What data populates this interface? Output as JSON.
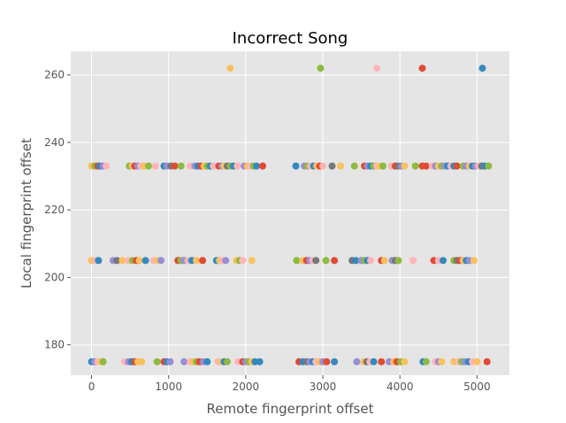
{
  "chart_data": {
    "type": "scatter",
    "title": "Incorrect Song",
    "xlabel": "Remote fingerprint offset",
    "ylabel": "Local fingerprint offset",
    "xlim": [
      -270,
      5420
    ],
    "ylim": [
      171,
      267
    ],
    "xticks": [
      0,
      1000,
      2000,
      3000,
      4000,
      5000
    ],
    "yticks": [
      180,
      200,
      220,
      240,
      260
    ],
    "grid": true,
    "legend": "none",
    "colors": [
      "#E24A33",
      "#348ABD",
      "#988ED5",
      "#777777",
      "#FBC15E",
      "#8EBA42",
      "#FFB5B8"
    ],
    "points": [
      {
        "x": 1800,
        "y": 262,
        "c": 4
      },
      {
        "x": 2970,
        "y": 262,
        "c": 5
      },
      {
        "x": 3700,
        "y": 262,
        "c": 6
      },
      {
        "x": 4290,
        "y": 262,
        "c": 0
      },
      {
        "x": 5070,
        "y": 262,
        "c": 1
      },
      {
        "x": 0,
        "y": 233,
        "c": 4
      },
      {
        "x": 40,
        "y": 233,
        "c": 5
      },
      {
        "x": 80,
        "y": 233,
        "c": 0
      },
      {
        "x": 110,
        "y": 233,
        "c": 1
      },
      {
        "x": 150,
        "y": 233,
        "c": 2
      },
      {
        "x": 190,
        "y": 233,
        "c": 6
      },
      {
        "x": 490,
        "y": 233,
        "c": 5
      },
      {
        "x": 530,
        "y": 233,
        "c": 4
      },
      {
        "x": 560,
        "y": 233,
        "c": 0
      },
      {
        "x": 600,
        "y": 233,
        "c": 2
      },
      {
        "x": 640,
        "y": 233,
        "c": 6
      },
      {
        "x": 680,
        "y": 233,
        "c": 4
      },
      {
        "x": 740,
        "y": 233,
        "c": 5
      },
      {
        "x": 830,
        "y": 233,
        "c": 6
      },
      {
        "x": 940,
        "y": 233,
        "c": 1
      },
      {
        "x": 980,
        "y": 233,
        "c": 2
      },
      {
        "x": 1030,
        "y": 233,
        "c": 3
      },
      {
        "x": 1080,
        "y": 233,
        "c": 0
      },
      {
        "x": 1160,
        "y": 233,
        "c": 5
      },
      {
        "x": 1280,
        "y": 233,
        "c": 6
      },
      {
        "x": 1340,
        "y": 233,
        "c": 2
      },
      {
        "x": 1380,
        "y": 233,
        "c": 1
      },
      {
        "x": 1420,
        "y": 233,
        "c": 0
      },
      {
        "x": 1460,
        "y": 233,
        "c": 4
      },
      {
        "x": 1500,
        "y": 233,
        "c": 5
      },
      {
        "x": 1540,
        "y": 233,
        "c": 1
      },
      {
        "x": 1580,
        "y": 233,
        "c": 6
      },
      {
        "x": 1650,
        "y": 233,
        "c": 0
      },
      {
        "x": 1690,
        "y": 233,
        "c": 2
      },
      {
        "x": 1720,
        "y": 233,
        "c": 4
      },
      {
        "x": 1760,
        "y": 233,
        "c": 3
      },
      {
        "x": 1800,
        "y": 233,
        "c": 5
      },
      {
        "x": 1840,
        "y": 233,
        "c": 1
      },
      {
        "x": 1890,
        "y": 233,
        "c": 6
      },
      {
        "x": 1980,
        "y": 233,
        "c": 2
      },
      {
        "x": 2020,
        "y": 233,
        "c": 4
      },
      {
        "x": 2060,
        "y": 233,
        "c": 6
      },
      {
        "x": 2100,
        "y": 233,
        "c": 5
      },
      {
        "x": 2140,
        "y": 233,
        "c": 1
      },
      {
        "x": 2220,
        "y": 233,
        "c": 0
      },
      {
        "x": 2650,
        "y": 233,
        "c": 1
      },
      {
        "x": 2760,
        "y": 233,
        "c": 2
      },
      {
        "x": 2800,
        "y": 233,
        "c": 5
      },
      {
        "x": 2840,
        "y": 233,
        "c": 6
      },
      {
        "x": 2880,
        "y": 233,
        "c": 1
      },
      {
        "x": 2920,
        "y": 233,
        "c": 4
      },
      {
        "x": 2960,
        "y": 233,
        "c": 0
      },
      {
        "x": 3000,
        "y": 233,
        "c": 6
      },
      {
        "x": 3120,
        "y": 233,
        "c": 3
      },
      {
        "x": 3230,
        "y": 233,
        "c": 4
      },
      {
        "x": 3410,
        "y": 233,
        "c": 5
      },
      {
        "x": 3540,
        "y": 233,
        "c": 0
      },
      {
        "x": 3580,
        "y": 233,
        "c": 2
      },
      {
        "x": 3620,
        "y": 233,
        "c": 1
      },
      {
        "x": 3660,
        "y": 233,
        "c": 5
      },
      {
        "x": 3700,
        "y": 233,
        "c": 6
      },
      {
        "x": 3740,
        "y": 233,
        "c": 4
      },
      {
        "x": 3780,
        "y": 233,
        "c": 5
      },
      {
        "x": 3890,
        "y": 233,
        "c": 6
      },
      {
        "x": 3940,
        "y": 233,
        "c": 0
      },
      {
        "x": 3980,
        "y": 233,
        "c": 3
      },
      {
        "x": 4020,
        "y": 233,
        "c": 2
      },
      {
        "x": 4060,
        "y": 233,
        "c": 4
      },
      {
        "x": 4200,
        "y": 233,
        "c": 5
      },
      {
        "x": 4290,
        "y": 233,
        "c": 0
      },
      {
        "x": 4340,
        "y": 233,
        "c": 0
      },
      {
        "x": 4420,
        "y": 233,
        "c": 6
      },
      {
        "x": 4460,
        "y": 233,
        "c": 2
      },
      {
        "x": 4500,
        "y": 233,
        "c": 4
      },
      {
        "x": 4540,
        "y": 233,
        "c": 5
      },
      {
        "x": 4580,
        "y": 233,
        "c": 2
      },
      {
        "x": 4620,
        "y": 233,
        "c": 1
      },
      {
        "x": 4660,
        "y": 233,
        "c": 6
      },
      {
        "x": 4700,
        "y": 233,
        "c": 1
      },
      {
        "x": 4740,
        "y": 233,
        "c": 0
      },
      {
        "x": 4820,
        "y": 233,
        "c": 5
      },
      {
        "x": 4860,
        "y": 233,
        "c": 2
      },
      {
        "x": 4900,
        "y": 233,
        "c": 4
      },
      {
        "x": 4940,
        "y": 233,
        "c": 1
      },
      {
        "x": 4980,
        "y": 233,
        "c": 2
      },
      {
        "x": 5020,
        "y": 233,
        "c": 6
      },
      {
        "x": 5060,
        "y": 233,
        "c": 3
      },
      {
        "x": 5100,
        "y": 233,
        "c": 1
      },
      {
        "x": 5150,
        "y": 233,
        "c": 5
      },
      {
        "x": 0,
        "y": 205,
        "c": 4
      },
      {
        "x": 50,
        "y": 205,
        "c": 6
      },
      {
        "x": 90,
        "y": 205,
        "c": 1
      },
      {
        "x": 280,
        "y": 205,
        "c": 2
      },
      {
        "x": 330,
        "y": 205,
        "c": 3
      },
      {
        "x": 400,
        "y": 205,
        "c": 4
      },
      {
        "x": 480,
        "y": 205,
        "c": 6
      },
      {
        "x": 530,
        "y": 205,
        "c": 5
      },
      {
        "x": 580,
        "y": 205,
        "c": 0
      },
      {
        "x": 620,
        "y": 205,
        "c": 4
      },
      {
        "x": 700,
        "y": 205,
        "c": 1
      },
      {
        "x": 800,
        "y": 205,
        "c": 6
      },
      {
        "x": 850,
        "y": 205,
        "c": 4
      },
      {
        "x": 900,
        "y": 205,
        "c": 2
      },
      {
        "x": 1120,
        "y": 205,
        "c": 0
      },
      {
        "x": 1160,
        "y": 205,
        "c": 5
      },
      {
        "x": 1200,
        "y": 205,
        "c": 2
      },
      {
        "x": 1250,
        "y": 205,
        "c": 6
      },
      {
        "x": 1300,
        "y": 205,
        "c": 1
      },
      {
        "x": 1360,
        "y": 205,
        "c": 4
      },
      {
        "x": 1440,
        "y": 205,
        "c": 0
      },
      {
        "x": 1620,
        "y": 205,
        "c": 1
      },
      {
        "x": 1660,
        "y": 205,
        "c": 4
      },
      {
        "x": 1700,
        "y": 205,
        "c": 6
      },
      {
        "x": 1740,
        "y": 205,
        "c": 2
      },
      {
        "x": 1880,
        "y": 205,
        "c": 4
      },
      {
        "x": 1920,
        "y": 205,
        "c": 5
      },
      {
        "x": 1960,
        "y": 205,
        "c": 6
      },
      {
        "x": 2080,
        "y": 205,
        "c": 4
      },
      {
        "x": 2660,
        "y": 205,
        "c": 5
      },
      {
        "x": 2740,
        "y": 205,
        "c": 4
      },
      {
        "x": 2790,
        "y": 205,
        "c": 0
      },
      {
        "x": 2830,
        "y": 205,
        "c": 2
      },
      {
        "x": 2870,
        "y": 205,
        "c": 6
      },
      {
        "x": 2910,
        "y": 205,
        "c": 3
      },
      {
        "x": 3040,
        "y": 205,
        "c": 5
      },
      {
        "x": 3150,
        "y": 205,
        "c": 0
      },
      {
        "x": 3380,
        "y": 205,
        "c": 3
      },
      {
        "x": 3430,
        "y": 205,
        "c": 1
      },
      {
        "x": 3500,
        "y": 205,
        "c": 2
      },
      {
        "x": 3540,
        "y": 205,
        "c": 5
      },
      {
        "x": 3580,
        "y": 205,
        "c": 1
      },
      {
        "x": 3620,
        "y": 205,
        "c": 6
      },
      {
        "x": 3760,
        "y": 205,
        "c": 0
      },
      {
        "x": 3800,
        "y": 205,
        "c": 4
      },
      {
        "x": 3900,
        "y": 205,
        "c": 2
      },
      {
        "x": 3940,
        "y": 205,
        "c": 3
      },
      {
        "x": 3980,
        "y": 205,
        "c": 5
      },
      {
        "x": 4170,
        "y": 205,
        "c": 6
      },
      {
        "x": 4440,
        "y": 205,
        "c": 0
      },
      {
        "x": 4500,
        "y": 205,
        "c": 6
      },
      {
        "x": 4560,
        "y": 205,
        "c": 1
      },
      {
        "x": 4700,
        "y": 205,
        "c": 5
      },
      {
        "x": 4740,
        "y": 205,
        "c": 3
      },
      {
        "x": 4780,
        "y": 205,
        "c": 0
      },
      {
        "x": 4820,
        "y": 205,
        "c": 4
      },
      {
        "x": 4860,
        "y": 205,
        "c": 1
      },
      {
        "x": 4900,
        "y": 205,
        "c": 2
      },
      {
        "x": 4960,
        "y": 205,
        "c": 4
      },
      {
        "x": 0,
        "y": 175,
        "c": 1
      },
      {
        "x": 40,
        "y": 175,
        "c": 2
      },
      {
        "x": 80,
        "y": 175,
        "c": 6
      },
      {
        "x": 120,
        "y": 175,
        "c": 4
      },
      {
        "x": 150,
        "y": 175,
        "c": 5
      },
      {
        "x": 430,
        "y": 175,
        "c": 6
      },
      {
        "x": 480,
        "y": 175,
        "c": 2
      },
      {
        "x": 520,
        "y": 175,
        "c": 1
      },
      {
        "x": 560,
        "y": 175,
        "c": 0
      },
      {
        "x": 600,
        "y": 175,
        "c": 4
      },
      {
        "x": 650,
        "y": 175,
        "c": 4
      },
      {
        "x": 850,
        "y": 175,
        "c": 5
      },
      {
        "x": 940,
        "y": 175,
        "c": 0
      },
      {
        "x": 980,
        "y": 175,
        "c": 1
      },
      {
        "x": 1020,
        "y": 175,
        "c": 2
      },
      {
        "x": 1200,
        "y": 175,
        "c": 2
      },
      {
        "x": 1280,
        "y": 175,
        "c": 6
      },
      {
        "x": 1320,
        "y": 175,
        "c": 4
      },
      {
        "x": 1360,
        "y": 175,
        "c": 5
      },
      {
        "x": 1400,
        "y": 175,
        "c": 0
      },
      {
        "x": 1450,
        "y": 175,
        "c": 2
      },
      {
        "x": 1500,
        "y": 175,
        "c": 1
      },
      {
        "x": 1640,
        "y": 175,
        "c": 6
      },
      {
        "x": 1680,
        "y": 175,
        "c": 4
      },
      {
        "x": 1720,
        "y": 175,
        "c": 1
      },
      {
        "x": 1760,
        "y": 175,
        "c": 5
      },
      {
        "x": 1900,
        "y": 175,
        "c": 6
      },
      {
        "x": 1960,
        "y": 175,
        "c": 0
      },
      {
        "x": 2000,
        "y": 175,
        "c": 2
      },
      {
        "x": 2040,
        "y": 175,
        "c": 5
      },
      {
        "x": 2080,
        "y": 175,
        "c": 4
      },
      {
        "x": 2120,
        "y": 175,
        "c": 1
      },
      {
        "x": 2180,
        "y": 175,
        "c": 1
      },
      {
        "x": 2690,
        "y": 175,
        "c": 0
      },
      {
        "x": 2740,
        "y": 175,
        "c": 1
      },
      {
        "x": 2790,
        "y": 175,
        "c": 3
      },
      {
        "x": 2830,
        "y": 175,
        "c": 2
      },
      {
        "x": 2870,
        "y": 175,
        "c": 1
      },
      {
        "x": 2910,
        "y": 175,
        "c": 6
      },
      {
        "x": 2960,
        "y": 175,
        "c": 4
      },
      {
        "x": 3000,
        "y": 175,
        "c": 2
      },
      {
        "x": 3050,
        "y": 175,
        "c": 0
      },
      {
        "x": 3150,
        "y": 175,
        "c": 1
      },
      {
        "x": 3440,
        "y": 175,
        "c": 2
      },
      {
        "x": 3530,
        "y": 175,
        "c": 4
      },
      {
        "x": 3570,
        "y": 175,
        "c": 3
      },
      {
        "x": 3610,
        "y": 175,
        "c": 6
      },
      {
        "x": 3660,
        "y": 175,
        "c": 1
      },
      {
        "x": 3760,
        "y": 175,
        "c": 0
      },
      {
        "x": 3860,
        "y": 175,
        "c": 2
      },
      {
        "x": 3920,
        "y": 175,
        "c": 4
      },
      {
        "x": 3960,
        "y": 175,
        "c": 0
      },
      {
        "x": 4010,
        "y": 175,
        "c": 5
      },
      {
        "x": 4060,
        "y": 175,
        "c": 4
      },
      {
        "x": 4300,
        "y": 175,
        "c": 1
      },
      {
        "x": 4340,
        "y": 175,
        "c": 5
      },
      {
        "x": 4460,
        "y": 175,
        "c": 6
      },
      {
        "x": 4500,
        "y": 175,
        "c": 2
      },
      {
        "x": 4540,
        "y": 175,
        "c": 4
      },
      {
        "x": 4700,
        "y": 175,
        "c": 4
      },
      {
        "x": 4760,
        "y": 175,
        "c": 6
      },
      {
        "x": 4800,
        "y": 175,
        "c": 5
      },
      {
        "x": 4840,
        "y": 175,
        "c": 2
      },
      {
        "x": 4890,
        "y": 175,
        "c": 1
      },
      {
        "x": 4940,
        "y": 175,
        "c": 6
      },
      {
        "x": 5000,
        "y": 175,
        "c": 4
      },
      {
        "x": 5130,
        "y": 175,
        "c": 0
      }
    ]
  }
}
